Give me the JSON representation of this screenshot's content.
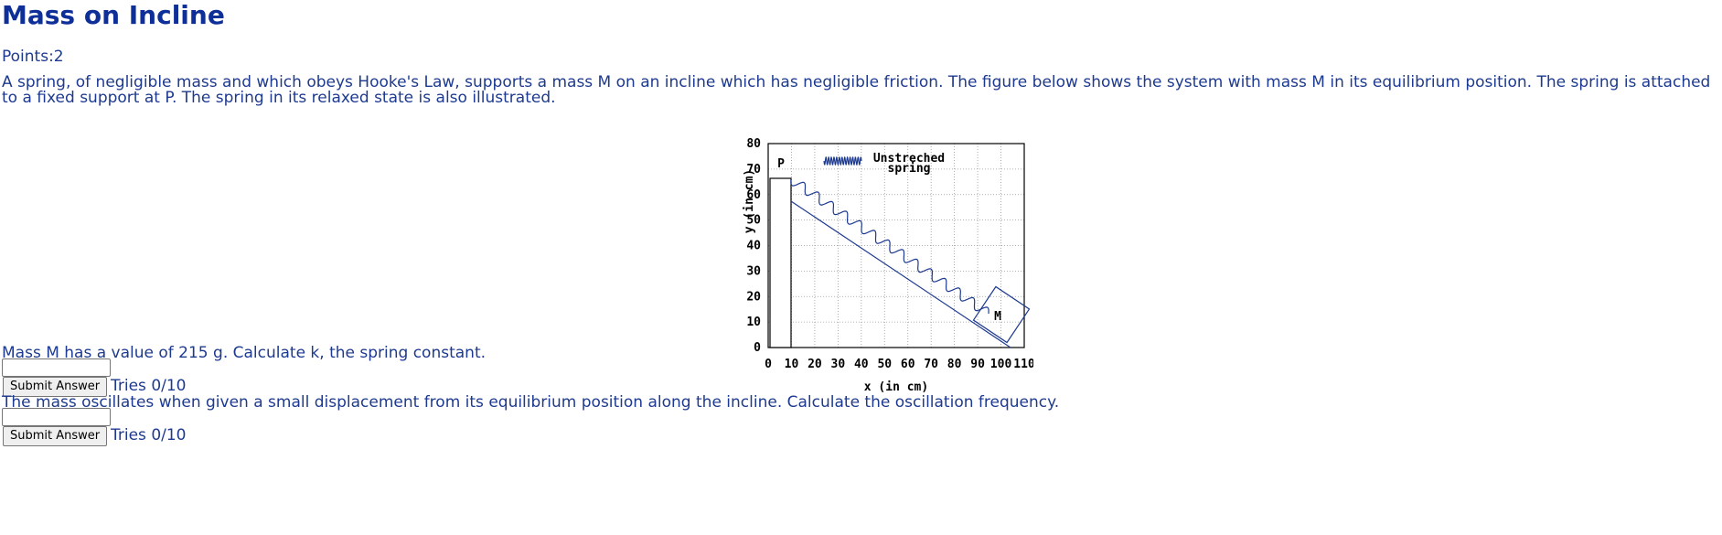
{
  "problem": {
    "title": "Mass on Incline",
    "points": "Points:2",
    "description": "A spring, of negligible mass and which obeys Hooke's Law, supports a mass M on an incline which has negligible friction. The figure below shows the system with mass M in its equilibrium position. The spring is attached to a fixed support at P. The spring in its relaxed state is also illustrated."
  },
  "figure": {
    "xlabel": "x (in cm)",
    "ylabel": "y (in cm)",
    "xticks": [
      "0",
      "10",
      "20",
      "30",
      "40",
      "50",
      "60",
      "70",
      "80",
      "90",
      "100",
      "110"
    ],
    "yticks": [
      "0",
      "10",
      "20",
      "30",
      "40",
      "50",
      "60",
      "70",
      "80"
    ],
    "xlim": [
      0,
      110
    ],
    "ylim": [
      0,
      80
    ],
    "grid": true,
    "support_label": "P",
    "mass_label": "M",
    "legend_line1": "Unstreched",
    "legend_line2": "spring",
    "line_color": "#1d3a8f"
  },
  "questions": [
    {
      "text": "Mass M has a value of 215 g. Calculate k, the spring constant.",
      "input_value": "",
      "button_label": "Submit Answer",
      "tries": "Tries 0/10"
    },
    {
      "text": "The mass oscillates when given a small displacement from its equilibrium position along the incline. Calculate the oscillation frequency.",
      "input_value": "",
      "button_label": "Submit Answer",
      "tries": "Tries 0/10"
    }
  ]
}
